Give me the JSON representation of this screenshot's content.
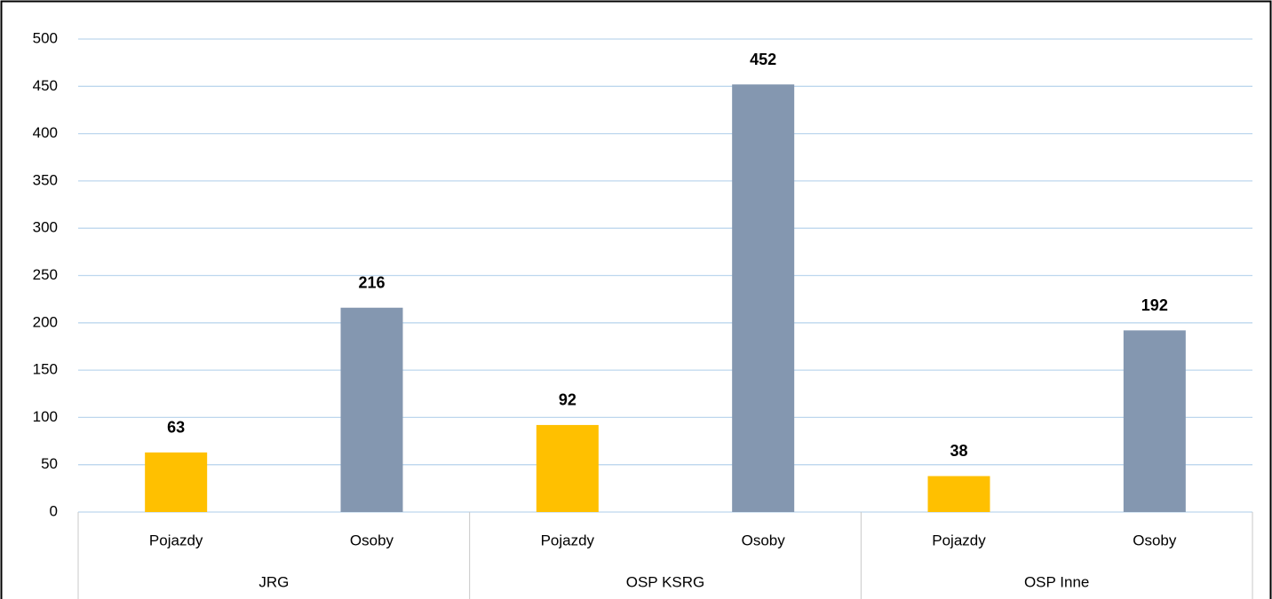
{
  "chart_data": {
    "type": "bar",
    "categories": [
      "Pojazdy",
      "Osoby",
      "Pojazdy",
      "Osoby",
      "Pojazdy",
      "Osoby"
    ],
    "groups": [
      "JRG",
      "OSP KSRG",
      "OSP Inne"
    ],
    "values": [
      63,
      216,
      92,
      452,
      38,
      192
    ],
    "colors": [
      "#FFC000",
      "#8497B0",
      "#FFC000",
      "#8497B0",
      "#FFC000",
      "#8497B0"
    ],
    "ylim": [
      0,
      500
    ],
    "yticks": [
      0,
      50,
      100,
      150,
      200,
      250,
      300,
      350,
      400,
      450,
      500
    ],
    "grid": true
  }
}
